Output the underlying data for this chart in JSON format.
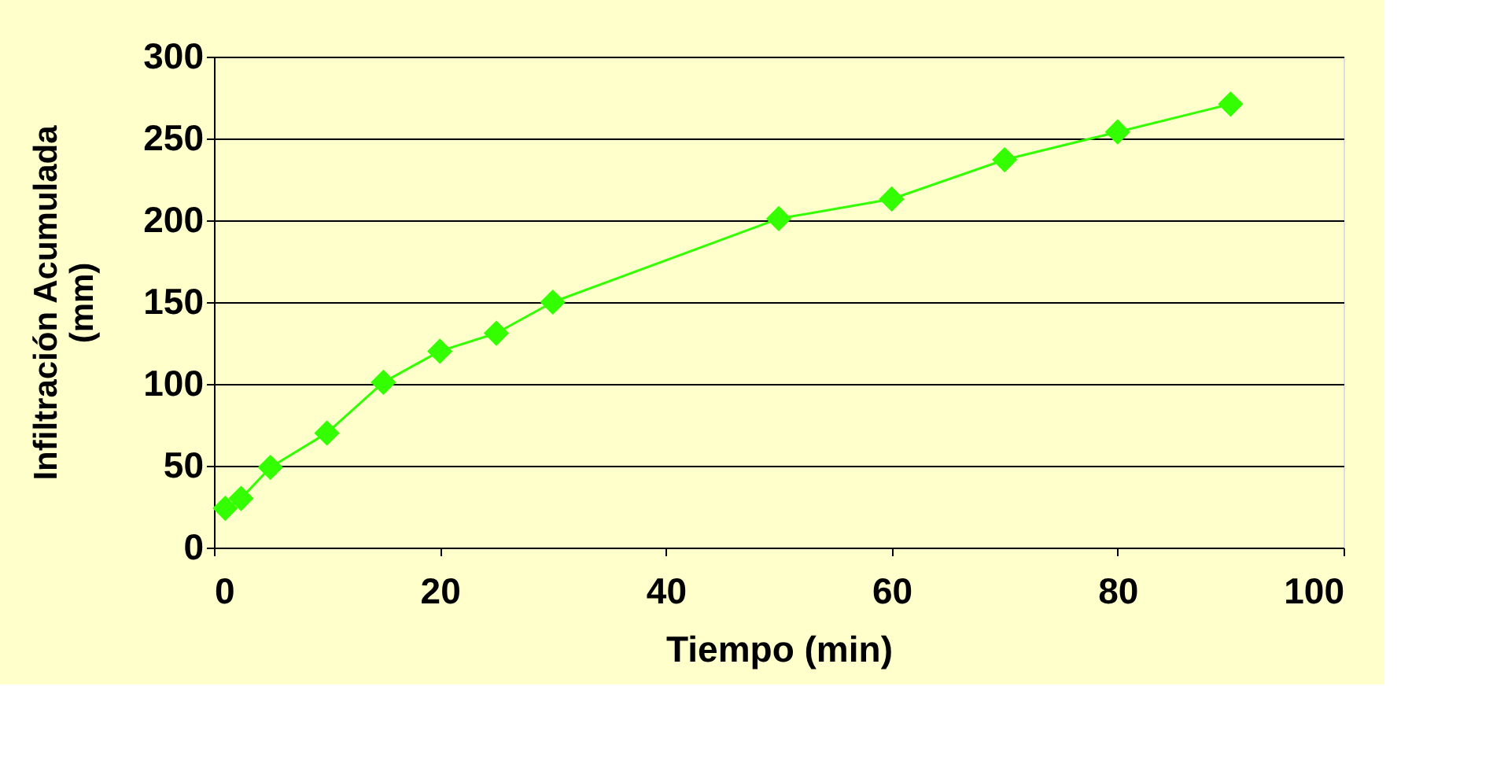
{
  "chart_data": {
    "type": "line",
    "xlabel": "Tiempo (min)",
    "ylabel": "Infiltración Acumulada\n(mm)",
    "x": [
      1,
      2.4,
      5,
      10,
      15,
      20,
      25,
      30,
      50,
      60,
      70,
      80,
      90
    ],
    "series": [
      {
        "color": "#33ff00",
        "values": [
          24,
          30,
          49,
          70,
          101,
          120,
          131,
          150,
          201,
          213,
          237,
          254,
          271
        ]
      }
    ],
    "xlim": [
      0,
      100
    ],
    "xticks": [
      0,
      20,
      40,
      60,
      80,
      100
    ],
    "ylim": [
      0,
      300
    ],
    "yticks": [
      0,
      50,
      100,
      150,
      200,
      250,
      300
    ],
    "grid": "y",
    "marker": "diamond",
    "line_style": "solid"
  }
}
